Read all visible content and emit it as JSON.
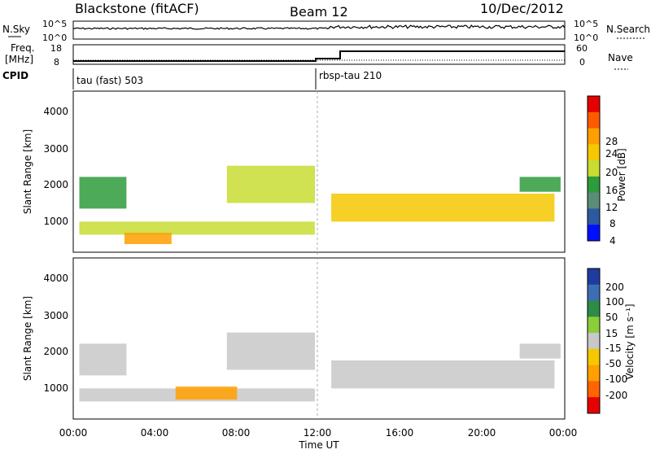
{
  "header": {
    "station": "Blackstone (fitACF)",
    "beam": "Beam 12",
    "date": "10/Dec/2012"
  },
  "summary_panel": {
    "nsky_label": "N.Sky",
    "nsky_ticks": [
      "10^5",
      "10^0"
    ],
    "nsearch_label": "N.Search",
    "nsearch_ticks": [
      "10^5",
      "10^0"
    ],
    "freq_label_1": "Freq.",
    "freq_label_2": "[MHz]",
    "freq_ticks": [
      "18",
      "8"
    ],
    "nave_label": "Nave",
    "nave_ticks": [
      "60",
      "0"
    ],
    "cpid_label": "CPID",
    "cpid_1": "tau (fast) 503",
    "cpid_2": "rbsp-tau 210"
  },
  "power_colorbar": {
    "label": "Power [dB]",
    "ticks": [
      "28",
      "24",
      "20",
      "16",
      "12",
      "8",
      "4"
    ],
    "colors": [
      "#e60000",
      "#ff5a00",
      "#ff9e00",
      "#f5c800",
      "#c8dc32",
      "#2e9b3c",
      "#5a8c78",
      "#2b5aa0",
      "#0010ff"
    ]
  },
  "velocity_colorbar": {
    "label": "Velocity [m s⁻¹]",
    "ticks": [
      "200",
      "100",
      "50",
      "15",
      "-15",
      "-50",
      "-100",
      "-200"
    ],
    "colors": [
      "#1e3ca0",
      "#3c6eb4",
      "#2d8c46",
      "#8ccd3c",
      "#c8c8c8",
      "#f5c800",
      "#ffa000",
      "#ff6400",
      "#e60000"
    ]
  },
  "axes": {
    "y_label": "Slant Range [km]",
    "y_ticks": [
      "4000",
      "3000",
      "2000",
      "1000"
    ],
    "x_label": "Time UT",
    "x_ticks": [
      "00:00",
      "04:00",
      "08:00",
      "12:00",
      "16:00",
      "20:00",
      "00:00"
    ]
  },
  "chart_data": {
    "type": "heatmap",
    "title": "Blackstone (fitACF) Beam 12 10/Dec/2012",
    "xlabel": "Time UT",
    "ylabel": "Slant Range [km]",
    "xlim": [
      "00:00",
      "24:00"
    ],
    "ylim": [
      180,
      4500
    ],
    "panels": [
      {
        "name": "Power",
        "colorbar_label": "Power [dB]",
        "color_range": [
          0,
          30
        ],
        "bands": [
          {
            "t": [
              0.3,
              2.6
            ],
            "r": [
              1350,
              2200
            ],
            "level": 12
          },
          {
            "t": [
              0.3,
              11.8
            ],
            "r": [
              650,
              1000
            ],
            "level": 16
          },
          {
            "t": [
              2.5,
              4.8
            ],
            "r": [
              400,
              700
            ],
            "level": 22
          },
          {
            "t": [
              7.5,
              11.8
            ],
            "r": [
              1500,
              2500
            ],
            "level": 14
          },
          {
            "t": [
              12.6,
              23.5
            ],
            "r": [
              1000,
              1750
            ],
            "level": 18
          },
          {
            "t": [
              21.8,
              23.8
            ],
            "r": [
              1800,
              2200
            ],
            "level": 10
          }
        ]
      },
      {
        "name": "Velocity",
        "colorbar_label": "Velocity [m s⁻¹]",
        "color_range": [
          -200,
          200
        ],
        "bands": [
          {
            "t": [
              0.3,
              2.6
            ],
            "r": [
              1350,
              2200
            ],
            "level": 0
          },
          {
            "t": [
              0.3,
              11.8
            ],
            "r": [
              650,
              1000
            ],
            "level": -20
          },
          {
            "t": [
              5.0,
              8.0
            ],
            "r": [
              700,
              1050
            ],
            "level": -80
          },
          {
            "t": [
              7.5,
              11.8
            ],
            "r": [
              1500,
              2500
            ],
            "level": 0
          },
          {
            "t": [
              12.6,
              23.5
            ],
            "r": [
              1000,
              1750
            ],
            "level": 0
          },
          {
            "t": [
              21.8,
              23.8
            ],
            "r": [
              1800,
              2200
            ],
            "level": 0
          }
        ]
      }
    ],
    "cpid_change_time": "12:00"
  }
}
